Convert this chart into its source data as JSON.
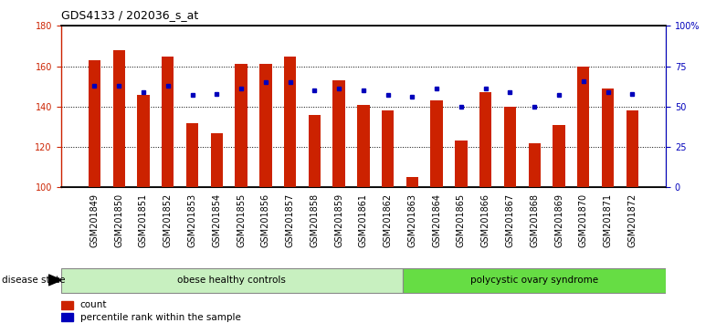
{
  "title": "GDS4133 / 202036_s_at",
  "samples": [
    "GSM201849",
    "GSM201850",
    "GSM201851",
    "GSM201852",
    "GSM201853",
    "GSM201854",
    "GSM201855",
    "GSM201856",
    "GSM201857",
    "GSM201858",
    "GSM201859",
    "GSM201861",
    "GSM201862",
    "GSM201863",
    "GSM201864",
    "GSM201865",
    "GSM201866",
    "GSM201867",
    "GSM201868",
    "GSM201869",
    "GSM201870",
    "GSM201871",
    "GSM201872"
  ],
  "counts": [
    163,
    168,
    146,
    165,
    132,
    127,
    161,
    161,
    165,
    136,
    153,
    141,
    138,
    105,
    143,
    123,
    147,
    140,
    122,
    131,
    160,
    149,
    138
  ],
  "percentiles": [
    63,
    63,
    59,
    63,
    57,
    58,
    61,
    65,
    65,
    60,
    61,
    60,
    57,
    56,
    61,
    50,
    61,
    59,
    50,
    57,
    66,
    59,
    58
  ],
  "group1_count": 13,
  "group_labels": [
    "obese healthy controls",
    "polycystic ovary syndrome"
  ],
  "group1_color": "#C8F0C0",
  "group2_color": "#66DD44",
  "bar_color": "#CC2200",
  "dot_color": "#0000BB",
  "baseline": 100,
  "ylim_left": [
    100,
    180
  ],
  "ylim_right": [
    0,
    100
  ],
  "yticks_left": [
    100,
    120,
    140,
    160,
    180
  ],
  "yticks_right": [
    0,
    25,
    50,
    75,
    100
  ],
  "ytick_labels_right": [
    "0",
    "25",
    "50",
    "75",
    "100%"
  ],
  "legend_count_label": "count",
  "legend_pct_label": "percentile rank within the sample",
  "disease_state_label": "disease state",
  "background_color": "#ffffff",
  "title_fontsize": 9,
  "tick_fontsize": 7,
  "label_fontsize": 7,
  "bar_width": 0.5
}
